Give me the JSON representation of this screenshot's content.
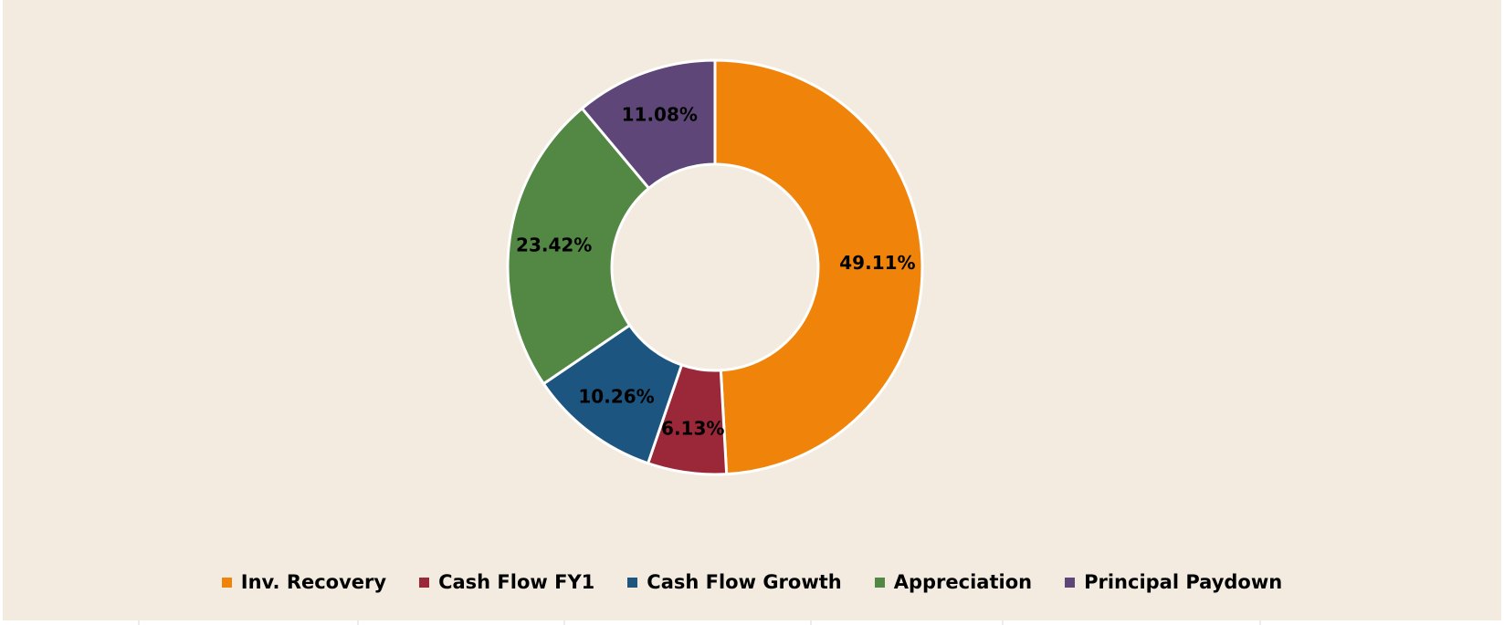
{
  "chart_data": {
    "type": "pie",
    "subtype": "donut",
    "title": "",
    "slices": [
      {
        "name": "Inv. Recovery",
        "value": 49.11,
        "label": "49.11%",
        "color": "#f0840b"
      },
      {
        "name": "Cash Flow FY1",
        "value": 6.13,
        "label": "6.13%",
        "color": "#9b2838"
      },
      {
        "name": "Cash Flow Growth",
        "value": 10.26,
        "label": "10.26%",
        "color": "#1c5580"
      },
      {
        "name": "Appreciation",
        "value": 23.42,
        "label": "23.42%",
        "color": "#528843"
      },
      {
        "name": "Principal Paydown",
        "value": 11.08,
        "label": "11.08%",
        "color": "#5e4778"
      }
    ],
    "start_angle": "12 o'clock",
    "direction": "clockwise",
    "legend": {
      "placement": "bottom",
      "items": [
        "Inv. Recovery",
        "Cash Flow FY1",
        "Cash Flow Growth",
        "Appreciation",
        "Principal Paydown"
      ]
    },
    "background_color": "#f3ebdf",
    "slice_border_color": "#ffffff"
  }
}
